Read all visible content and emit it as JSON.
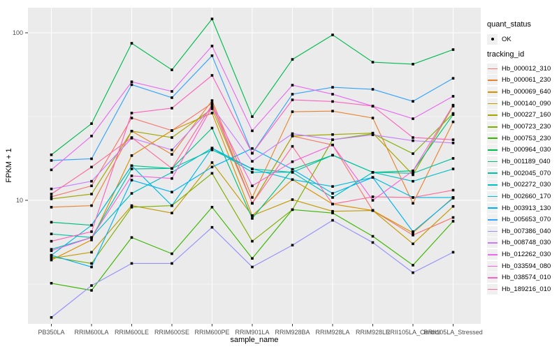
{
  "figure": {
    "background": "#FFFFFF",
    "panel_background": "#EBEBEB",
    "gridline_color": "#FFFFFF",
    "point_color": "#000000",
    "axis_text_color": "#4D4D4D",
    "tick_mark_color": "#333333"
  },
  "axes": {
    "x": {
      "title": "sample_name",
      "categories": [
        "PB350LA",
        "RRIM600LA",
        "RRIM600LE",
        "RRIM600SE",
        "RRIM600PE",
        "RRIM901LA",
        "RRIM928BA",
        "RRIM928LA",
        "RRIM928LE",
        "RRII105LA_Control",
        "RRII105LA_Stressed"
      ]
    },
    "y": {
      "title": "FPKM + 1",
      "scale": "log10",
      "major_ticks": [
        {
          "label": "100",
          "value": 100
        },
        {
          "label": "10",
          "value": 10
        }
      ],
      "minor_tick_values": [
        31.623,
        3.1623
      ],
      "range": [
        1.83,
        141
      ]
    }
  },
  "legend": {
    "quant_status": {
      "title": "quant_status",
      "items": [
        {
          "label": "OK",
          "symbol": "black-point"
        }
      ]
    },
    "tracking_id": {
      "title": "tracking_id"
    }
  },
  "chart_data": {
    "type": "line",
    "title": "",
    "xlabel": "sample_name",
    "ylabel": "FPKM + 1",
    "y_scale": "log10",
    "ylim": [
      1.83,
      141
    ],
    "grid": true,
    "legend_position": "right",
    "point_marker": "small-black-square",
    "categories": [
      "PB350LA",
      "RRIM600LA",
      "RRIM600LE",
      "RRIM600SE",
      "RRIM600PE",
      "RRIM901LA",
      "RRIM928BA",
      "RRIM928LA",
      "RRIM928LE",
      "RRII105LA_Control",
      "RRII105LA_Stressed"
    ],
    "series": [
      {
        "name": "Hb_000012_310",
        "color": "#F8766D",
        "values": [
          10.5,
          12.2,
          31.0,
          26.1,
          38.0,
          9.6,
          24.2,
          21.4,
          8.7,
          6.2,
          7.9
        ]
      },
      {
        "name": "Hb_000061_230",
        "color": "#EA8331",
        "values": [
          9.1,
          9.3,
          25.9,
          18.8,
          39.4,
          10.4,
          33.8,
          34.1,
          31.0,
          9.6,
          29.4
        ]
      },
      {
        "name": "Hb_000069_640",
        "color": "#D89000",
        "values": [
          4.4,
          5.8,
          18.5,
          26.1,
          33.2,
          8.1,
          13.3,
          9.5,
          8.7,
          6.4,
          10.4
        ]
      },
      {
        "name": "Hb_000140_090",
        "color": "#C09B00",
        "values": [
          4.5,
          4.9,
          9.3,
          8.4,
          16.8,
          8.1,
          10.1,
          8.6,
          8.7,
          5.5,
          9.2
        ]
      },
      {
        "name": "Hb_000227_160",
        "color": "#A3A500",
        "values": [
          10.2,
          10.9,
          25.9,
          23.7,
          35.2,
          9.6,
          24.2,
          24.7,
          25.2,
          14.2,
          36.5
        ]
      },
      {
        "name": "Hb_000723_230",
        "color": "#7CAE00",
        "values": [
          4.6,
          4.2,
          9.1,
          9.3,
          14.5,
          5.7,
          8.8,
          23.0,
          25.0,
          19.0,
          33.0
        ]
      },
      {
        "name": "Hb_000753_230",
        "color": "#39B600",
        "values": [
          3.2,
          2.9,
          6.0,
          4.8,
          9.1,
          4.5,
          8.8,
          8.4,
          6.1,
          4.1,
          7.5
        ]
      },
      {
        "name": "Hb_000964_030",
        "color": "#00BB4E",
        "values": [
          18.7,
          28.7,
          86.6,
          60.1,
          121.0,
          31.6,
          69.4,
          97.2,
          66.8,
          65.0,
          79.4
        ]
      },
      {
        "name": "Hb_001189_040",
        "color": "#00BF7D",
        "values": [
          7.4,
          7.1,
          16.1,
          15.5,
          27.0,
          7.8,
          15.3,
          18.6,
          14.7,
          15.0,
          32.5
        ]
      },
      {
        "name": "Hb_002045_070",
        "color": "#00C1A3",
        "values": [
          6.3,
          6.0,
          15.4,
          15.5,
          20.0,
          15.4,
          14.7,
          18.6,
          14.7,
          14.5,
          17.8
        ]
      },
      {
        "name": "Hb_002272_030",
        "color": "#00BFC4",
        "values": [
          5.1,
          6.0,
          11.0,
          14.7,
          20.5,
          14.7,
          14.7,
          10.4,
          14.7,
          13.0,
          15.4
        ]
      },
      {
        "name": "Hb_002660_170",
        "color": "#00BAE0",
        "values": [
          4.7,
          7.1,
          16.1,
          9.3,
          20.5,
          15.4,
          13.3,
          12.1,
          13.7,
          10.4,
          10.4
        ]
      },
      {
        "name": "Hb_003913_130",
        "color": "#00B0F6",
        "values": [
          4.7,
          4.0,
          13.2,
          11.2,
          15.8,
          20.4,
          15.3,
          11.0,
          13.7,
          6.5,
          10.3
        ]
      },
      {
        "name": "Hb_005653_070",
        "color": "#35A2FF",
        "values": [
          17.3,
          17.7,
          49.0,
          41.0,
          73.0,
          19.1,
          43.0,
          47.3,
          46.0,
          39.0,
          53.5
        ]
      },
      {
        "name": "Hb_007386_040",
        "color": "#9590FF",
        "values": [
          2.0,
          3.1,
          4.2,
          4.2,
          6.9,
          4.0,
          5.4,
          7.6,
          5.6,
          3.7,
          4.9
        ]
      },
      {
        "name": "Hb_008748_030",
        "color": "#C77CFF",
        "values": [
          11.7,
          13.0,
          23.5,
          20.0,
          36.1,
          17.1,
          25.0,
          23.0,
          24.6,
          22.7,
          22.0
        ]
      },
      {
        "name": "Hb_012262_030",
        "color": "#E76BF3",
        "values": [
          15.2,
          24.2,
          51.0,
          44.7,
          83.4,
          26.0,
          48.7,
          43.0,
          36.5,
          30.7,
          41.8
        ]
      },
      {
        "name": "Hb_033594_080",
        "color": "#FA62DB",
        "values": [
          5.0,
          6.0,
          14.0,
          13.5,
          36.1,
          12.2,
          17.0,
          21.4,
          10.0,
          15.0,
          37.0
        ]
      },
      {
        "name": "Hb_038574_010",
        "color": "#FF62BC",
        "values": [
          5.7,
          6.5,
          33.2,
          35.5,
          55.7,
          19.1,
          39.8,
          38.9,
          36.5,
          23.7,
          23.0
        ]
      },
      {
        "name": "Hb_189216_010",
        "color": "#FF6A98",
        "values": [
          10.9,
          15.8,
          23.7,
          15.5,
          37.2,
          9.6,
          21.0,
          9.5,
          10.5,
          10.4,
          11.5
        ]
      }
    ]
  }
}
